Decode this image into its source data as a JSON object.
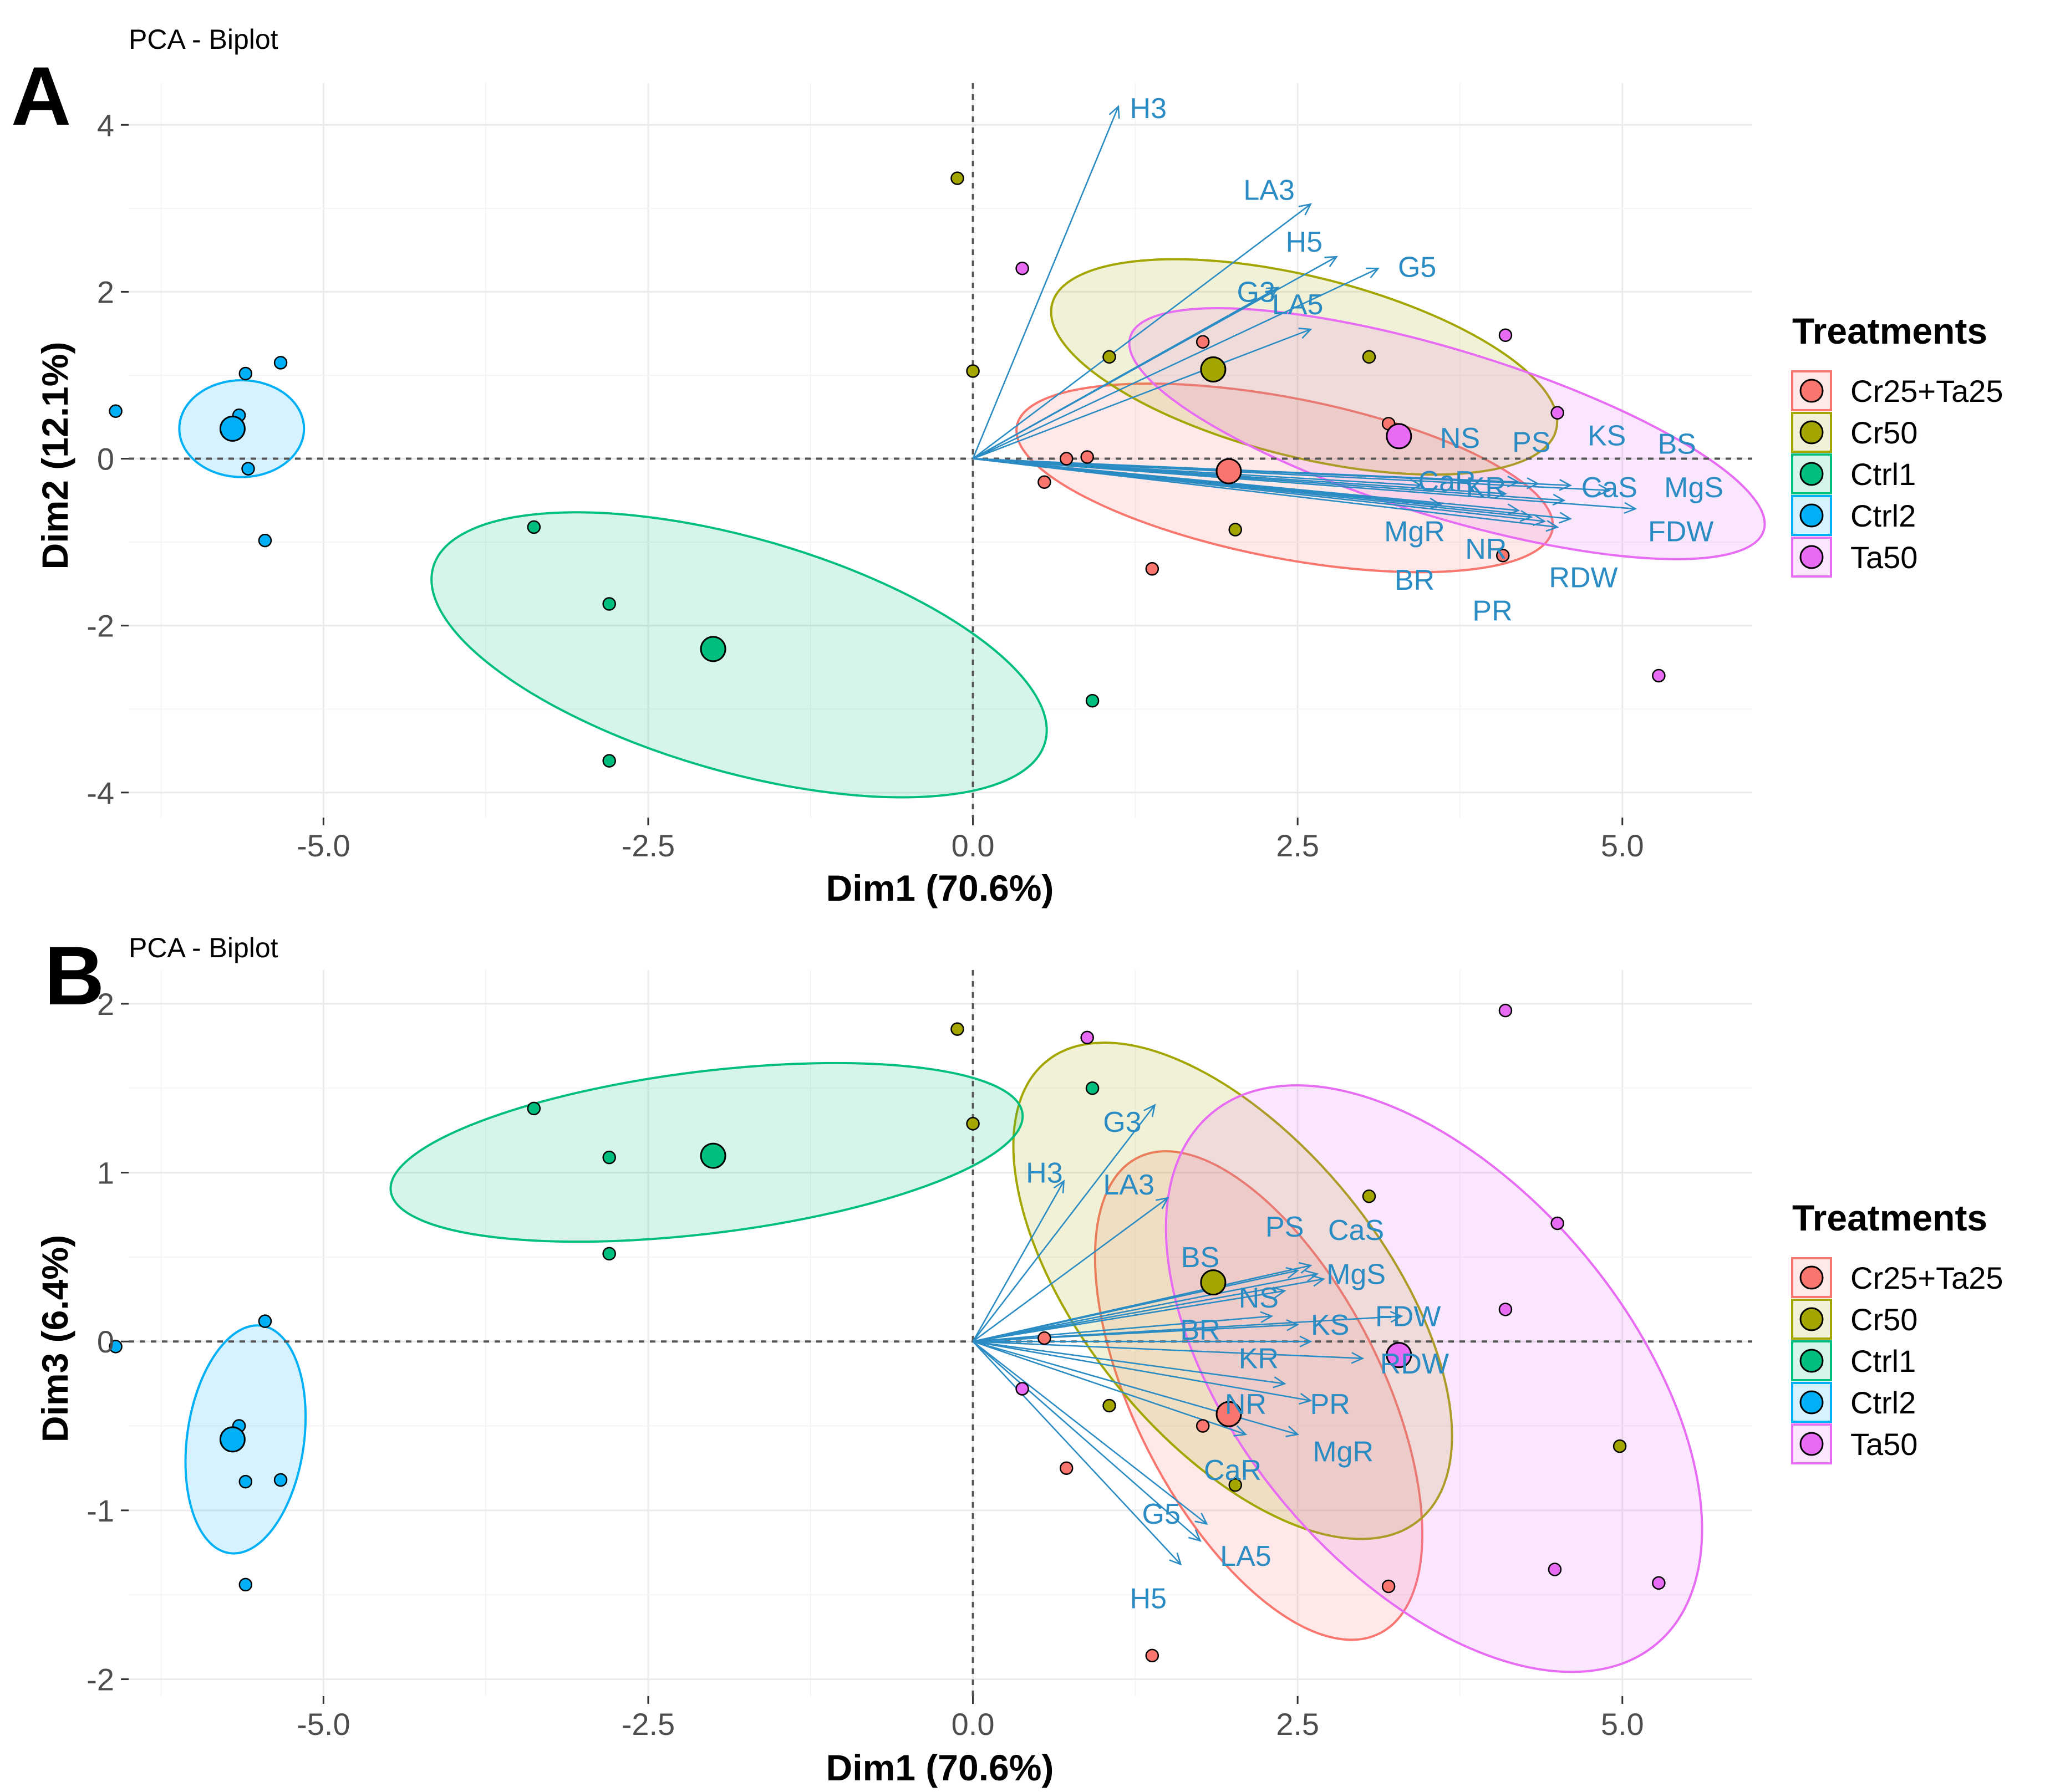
{
  "chart_data": [
    {
      "panel": "A",
      "type": "scatter",
      "title": "PCA - Biplot",
      "xlabel": "Dim1 (70.6%)",
      "ylabel": "Dim2 (12.1%)",
      "xlim": [
        -6.5,
        6.0
      ],
      "ylim": [
        -4.3,
        4.5
      ],
      "xticks": [
        -5.0,
        -2.5,
        0.0,
        2.5,
        5.0
      ],
      "xtick_labels": [
        "-5.0",
        "-2.5",
        "0.0",
        "2.5",
        "5.0"
      ],
      "yticks": [
        -4,
        -2,
        0,
        2,
        4
      ],
      "ytick_labels": [
        "-4",
        "-2",
        "0",
        "2",
        "4"
      ],
      "legend_title": "Treatments",
      "groups": [
        {
          "name": "Cr25+Ta25",
          "color": "#f8766d",
          "points": [
            [
              0.55,
              -0.28
            ],
            [
              0.72,
              0.0
            ],
            [
              0.88,
              0.02
            ],
            [
              1.38,
              -1.32
            ],
            [
              1.77,
              1.4
            ],
            [
              3.2,
              0.42
            ],
            [
              4.08,
              -1.16
            ]
          ],
          "centroid": [
            1.97,
            -0.15
          ],
          "ellipse": {
            "cx": 2.4,
            "cy": -0.23,
            "rx": 2.1,
            "ry": 0.96,
            "angle": -11
          }
        },
        {
          "name": "Cr50",
          "color": "#a3a500",
          "points": [
            [
              -0.12,
              3.36
            ],
            [
              0.0,
              1.05
            ],
            [
              1.05,
              1.22
            ],
            [
              2.02,
              -0.85
            ],
            [
              3.05,
              1.22
            ]
          ],
          "centroid": [
            1.85,
            1.07
          ],
          "ellipse": {
            "cx": 2.55,
            "cy": 1.1,
            "rx": 2.0,
            "ry": 1.08,
            "angle": -14
          }
        },
        {
          "name": "Ctrl1",
          "color": "#00bf7d",
          "points": [
            [
              -3.38,
              -0.82
            ],
            [
              -2.8,
              -1.74
            ],
            [
              -2.8,
              -3.62
            ],
            [
              0.92,
              -2.9
            ]
          ],
          "centroid": [
            -2.0,
            -2.28
          ],
          "ellipse": {
            "cx": -1.8,
            "cy": -2.35,
            "rx": 2.45,
            "ry": 1.4,
            "angle": -16
          }
        },
        {
          "name": "Ctrl2",
          "color": "#00b0f6",
          "points": [
            [
              -6.6,
              0.57
            ],
            [
              -5.6,
              1.02
            ],
            [
              -5.33,
              1.15
            ],
            [
              -5.65,
              0.52
            ],
            [
              -5.58,
              -0.12
            ],
            [
              -5.45,
              -0.98
            ]
          ],
          "centroid": [
            -5.7,
            0.36
          ],
          "ellipse": {
            "cx": -5.63,
            "cy": 0.36,
            "rx": 0.48,
            "ry": 0.58,
            "angle": 0
          }
        },
        {
          "name": "Ta50",
          "color": "#e76bf3",
          "points": [
            [
              0.38,
              2.28
            ],
            [
              4.1,
              1.48
            ],
            [
              4.5,
              0.55
            ],
            [
              5.28,
              -2.6
            ]
          ],
          "centroid": [
            3.28,
            0.27
          ],
          "ellipse": {
            "cx": 3.65,
            "cy": 0.3,
            "rx": 2.55,
            "ry": 1.0,
            "angle": -17
          }
        }
      ],
      "vectors": [
        {
          "label": "H3",
          "x": 1.12,
          "y": 4.22
        },
        {
          "label": "LA3",
          "x": 2.6,
          "y": 3.05
        },
        {
          "label": "H5",
          "x": 2.8,
          "y": 2.42
        },
        {
          "label": "G5",
          "x": 3.12,
          "y": 2.28
        },
        {
          "label": "G3",
          "x": 2.35,
          "y": 2.05
        },
        {
          "label": "LA5",
          "x": 2.6,
          "y": 1.55
        },
        {
          "label": "NS",
          "x": 4.2,
          "y": -0.28
        },
        {
          "label": "PS",
          "x": 4.35,
          "y": -0.3
        },
        {
          "label": "KS",
          "x": 4.6,
          "y": -0.32
        },
        {
          "label": "BS",
          "x": 4.9,
          "y": -0.38
        },
        {
          "label": "CaS",
          "x": 4.55,
          "y": -0.5
        },
        {
          "label": "MgS",
          "x": 5.1,
          "y": -0.6
        },
        {
          "label": "FDW",
          "x": 4.6,
          "y": -0.72
        },
        {
          "label": "CaR",
          "x": 3.45,
          "y": -0.32
        },
        {
          "label": "KR",
          "x": 4.1,
          "y": -0.42
        },
        {
          "label": "MgR",
          "x": 3.6,
          "y": -0.55
        },
        {
          "label": "NR",
          "x": 4.2,
          "y": -0.62
        },
        {
          "label": "BR",
          "x": 4.3,
          "y": -0.7
        },
        {
          "label": "PR",
          "x": 4.4,
          "y": -0.75
        },
        {
          "label": "RDW",
          "x": 4.5,
          "y": -0.82
        }
      ],
      "vector_labels": [
        {
          "label": "H3",
          "x": 1.35,
          "y": 4.2
        },
        {
          "label": "LA3",
          "x": 2.28,
          "y": 3.22
        },
        {
          "label": "H5",
          "x": 2.55,
          "y": 2.6
        },
        {
          "label": "G5",
          "x": 3.42,
          "y": 2.3
        },
        {
          "label": "G3",
          "x": 2.18,
          "y": 2.0
        },
        {
          "label": "LA5",
          "x": 2.5,
          "y": 1.85
        },
        {
          "label": "NS",
          "x": 3.75,
          "y": 0.25
        },
        {
          "label": "PS",
          "x": 4.3,
          "y": 0.2
        },
        {
          "label": "KS",
          "x": 4.88,
          "y": 0.28
        },
        {
          "label": "BS",
          "x": 5.42,
          "y": 0.18
        },
        {
          "label": "CaR",
          "x": 3.65,
          "y": -0.27
        },
        {
          "label": "KR",
          "x": 3.95,
          "y": -0.34
        },
        {
          "label": "CaS",
          "x": 4.9,
          "y": -0.34
        },
        {
          "label": "MgS",
          "x": 5.55,
          "y": -0.34
        },
        {
          "label": "MgR",
          "x": 3.4,
          "y": -0.87
        },
        {
          "label": "NR",
          "x": 3.95,
          "y": -1.08
        },
        {
          "label": "FDW",
          "x": 5.45,
          "y": -0.87
        },
        {
          "label": "BR",
          "x": 3.4,
          "y": -1.45
        },
        {
          "label": "RDW",
          "x": 4.7,
          "y": -1.42
        },
        {
          "label": "PR",
          "x": 4.0,
          "y": -1.82
        }
      ]
    },
    {
      "panel": "B",
      "type": "scatter",
      "title": "PCA - Biplot",
      "xlabel": "Dim1 (70.6%)",
      "ylabel": "Dim3 (6.4%)",
      "xlim": [
        -6.5,
        6.0
      ],
      "ylim": [
        -2.1,
        2.2
      ],
      "xticks": [
        -5.0,
        -2.5,
        0.0,
        2.5,
        5.0
      ],
      "xtick_labels": [
        "-5.0",
        "-2.5",
        "0.0",
        "2.5",
        "5.0"
      ],
      "yticks": [
        -2,
        -1,
        0,
        1,
        2
      ],
      "ytick_labels": [
        "-2",
        "-1",
        "0",
        "1",
        "2"
      ],
      "legend_title": "Treatments",
      "groups": [
        {
          "name": "Cr25+Ta25",
          "color": "#f8766d",
          "points": [
            [
              0.55,
              0.02
            ],
            [
              0.72,
              -0.75
            ],
            [
              1.38,
              -1.86
            ],
            [
              1.77,
              -0.5
            ],
            [
              3.2,
              -1.45
            ]
          ],
          "centroid": [
            1.97,
            -0.43
          ],
          "ellipse": {
            "cx": 2.2,
            "cy": -0.32,
            "rx": 0.95,
            "ry": 1.58,
            "angle": 27
          }
        },
        {
          "name": "Cr50",
          "color": "#a3a500",
          "points": [
            [
              -0.12,
              1.85
            ],
            [
              0.0,
              1.29
            ],
            [
              1.05,
              -0.38
            ],
            [
              2.02,
              -0.85
            ],
            [
              3.05,
              0.86
            ],
            [
              4.98,
              -0.62
            ]
          ],
          "centroid": [
            1.85,
            0.35
          ],
          "ellipse": {
            "cx": 2.0,
            "cy": 0.3,
            "rx": 1.15,
            "ry": 1.75,
            "angle": 39
          }
        },
        {
          "name": "Ctrl1",
          "color": "#00bf7d",
          "points": [
            [
              -3.38,
              1.38
            ],
            [
              -2.8,
              1.09
            ],
            [
              -2.8,
              0.52
            ],
            [
              0.92,
              1.5
            ]
          ],
          "centroid": [
            -2.0,
            1.1
          ],
          "ellipse": {
            "cx": -2.05,
            "cy": 1.12,
            "rx": 2.45,
            "ry": 0.48,
            "angle": 7
          }
        },
        {
          "name": "Ctrl2",
          "color": "#00b0f6",
          "points": [
            [
              -6.6,
              -0.03
            ],
            [
              -5.6,
              -0.83
            ],
            [
              -5.33,
              -0.82
            ],
            [
              -5.65,
              -0.5
            ],
            [
              -5.45,
              0.12
            ],
            [
              -5.6,
              -1.44
            ]
          ],
          "centroid": [
            -5.7,
            -0.58
          ],
          "ellipse": {
            "cx": -5.6,
            "cy": -0.58,
            "rx": 0.45,
            "ry": 0.68,
            "angle": -8
          }
        },
        {
          "name": "Ta50",
          "color": "#e76bf3",
          "points": [
            [
              0.38,
              -0.28
            ],
            [
              0.88,
              1.8
            ],
            [
              4.1,
              1.96
            ],
            [
              4.1,
              0.19
            ],
            [
              4.5,
              0.7
            ],
            [
              4.48,
              -1.35
            ],
            [
              5.28,
              -1.43
            ]
          ],
          "centroid": [
            3.28,
            -0.08
          ],
          "ellipse": {
            "cx": 3.55,
            "cy": -0.22,
            "rx": 1.5,
            "ry": 2.05,
            "angle": 40
          }
        }
      ],
      "vectors": [
        {
          "label": "G3",
          "x": 1.4,
          "y": 1.4
        },
        {
          "label": "H3",
          "x": 0.7,
          "y": 0.95
        },
        {
          "label": "LA3",
          "x": 1.5,
          "y": 0.85
        },
        {
          "label": "BS",
          "x": 2.5,
          "y": 0.42
        },
        {
          "label": "PS",
          "x": 2.6,
          "y": 0.45
        },
        {
          "label": "CaS",
          "x": 2.65,
          "y": 0.4
        },
        {
          "label": "MgS",
          "x": 2.7,
          "y": 0.37
        },
        {
          "label": "NS",
          "x": 2.4,
          "y": 0.3
        },
        {
          "label": "BR",
          "x": 2.3,
          "y": 0.15
        },
        {
          "label": "FDW",
          "x": 3.3,
          "y": 0.15
        },
        {
          "label": "KS",
          "x": 2.5,
          "y": 0.1
        },
        {
          "label": "KR",
          "x": 2.6,
          "y": 0.0
        },
        {
          "label": "RDW",
          "x": 3.0,
          "y": -0.1
        },
        {
          "label": "NR",
          "x": 2.4,
          "y": -0.25
        },
        {
          "label": "PR",
          "x": 2.6,
          "y": -0.35
        },
        {
          "label": "MgR",
          "x": 2.5,
          "y": -0.55
        },
        {
          "label": "CaR",
          "x": 2.1,
          "y": -0.55
        },
        {
          "label": "G5",
          "x": 1.8,
          "y": -1.08
        },
        {
          "label": "LA5",
          "x": 1.75,
          "y": -1.18
        },
        {
          "label": "H5",
          "x": 1.6,
          "y": -1.32
        }
      ],
      "vector_labels": [
        {
          "label": "G3",
          "x": 1.15,
          "y": 1.3
        },
        {
          "label": "H3",
          "x": 0.55,
          "y": 1.0
        },
        {
          "label": "LA3",
          "x": 1.2,
          "y": 0.93
        },
        {
          "label": "PS",
          "x": 2.4,
          "y": 0.68
        },
        {
          "label": "CaS",
          "x": 2.95,
          "y": 0.66
        },
        {
          "label": "BS",
          "x": 1.75,
          "y": 0.5
        },
        {
          "label": "MgS",
          "x": 2.95,
          "y": 0.4
        },
        {
          "label": "NS",
          "x": 2.2,
          "y": 0.26
        },
        {
          "label": "FDW",
          "x": 3.35,
          "y": 0.15
        },
        {
          "label": "BR",
          "x": 1.75,
          "y": 0.07
        },
        {
          "label": "KS",
          "x": 2.75,
          "y": 0.1
        },
        {
          "label": "KR",
          "x": 2.2,
          "y": -0.1
        },
        {
          "label": "RDW",
          "x": 3.4,
          "y": -0.13
        },
        {
          "label": "NR",
          "x": 2.1,
          "y": -0.37
        },
        {
          "label": "PR",
          "x": 2.75,
          "y": -0.37
        },
        {
          "label": "MgR",
          "x": 2.85,
          "y": -0.65
        },
        {
          "label": "CaR",
          "x": 2.0,
          "y": -0.76
        },
        {
          "label": "G5",
          "x": 1.45,
          "y": -1.02
        },
        {
          "label": "LA5",
          "x": 2.1,
          "y": -1.27
        },
        {
          "label": "H5",
          "x": 1.35,
          "y": -1.52
        }
      ]
    }
  ]
}
